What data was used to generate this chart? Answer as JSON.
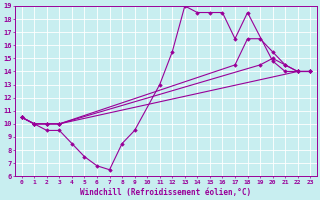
{
  "xlabel": "Windchill (Refroidissement éolien,°C)",
  "bg_color": "#c8eef0",
  "line_color": "#990099",
  "grid_color": "#aadddd",
  "xlim": [
    -0.5,
    23.5
  ],
  "ylim": [
    6,
    19
  ],
  "xticks": [
    0,
    1,
    2,
    3,
    4,
    5,
    6,
    7,
    8,
    9,
    10,
    11,
    12,
    13,
    14,
    15,
    16,
    17,
    18,
    19,
    20,
    21,
    22,
    23
  ],
  "yticks": [
    6,
    7,
    8,
    9,
    10,
    11,
    12,
    13,
    14,
    15,
    16,
    17,
    18,
    19
  ],
  "line1_x": [
    0,
    1,
    2,
    3,
    4,
    5,
    6,
    7,
    8,
    9,
    11,
    12,
    13,
    14,
    15,
    16,
    17,
    18,
    20,
    21,
    22,
    23
  ],
  "line1_y": [
    10.5,
    10.0,
    9.5,
    9.5,
    8.5,
    7.5,
    6.8,
    6.5,
    8.5,
    9.5,
    13.0,
    15.5,
    19.0,
    18.5,
    18.5,
    18.5,
    16.5,
    18.5,
    14.8,
    14.0,
    14.0,
    14.0
  ],
  "line2_x": [
    0,
    1,
    2,
    3,
    22,
    23
  ],
  "line2_y": [
    10.5,
    10.0,
    10.0,
    10.0,
    14.0,
    14.0
  ],
  "line3_x": [
    0,
    1,
    2,
    3,
    17,
    18,
    19,
    20,
    21,
    22,
    23
  ],
  "line3_y": [
    10.5,
    10.0,
    10.0,
    10.0,
    14.5,
    16.5,
    16.5,
    15.5,
    14.5,
    14.0,
    14.0
  ],
  "line4_x": [
    0,
    1,
    2,
    3,
    19,
    20,
    21,
    22,
    23
  ],
  "line4_y": [
    10.5,
    10.0,
    10.0,
    10.0,
    14.5,
    15.0,
    14.5,
    14.0,
    14.0
  ]
}
